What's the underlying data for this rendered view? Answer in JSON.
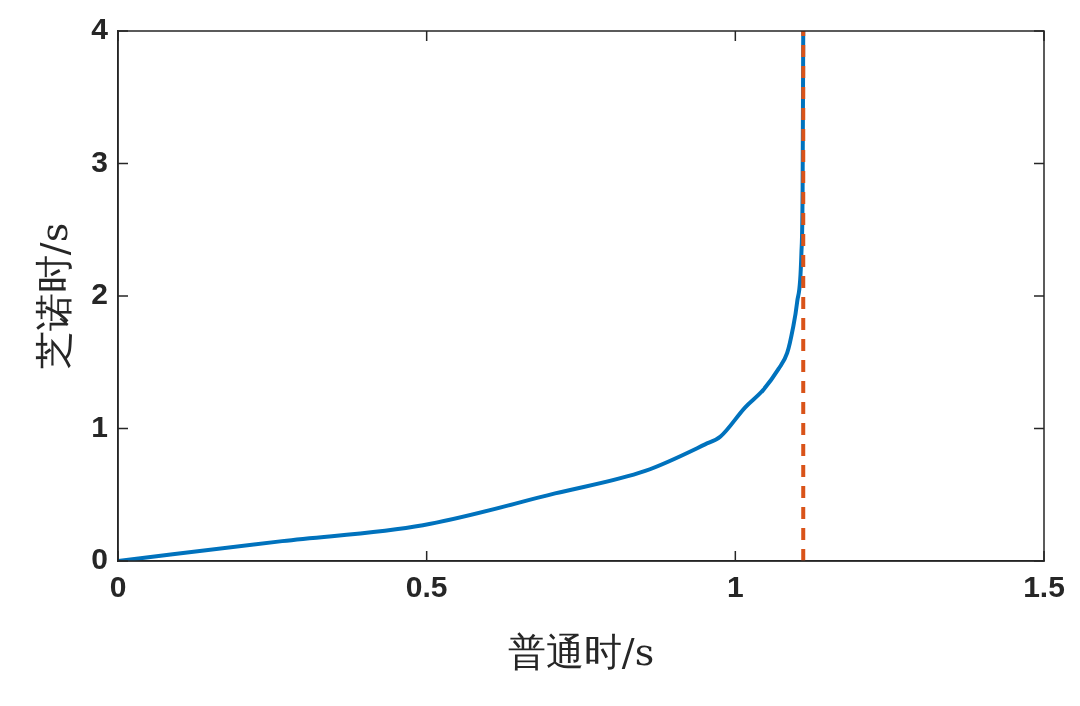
{
  "chart_data": {
    "type": "line",
    "xlabel": "普通时/s",
    "ylabel": "芝诺时/s",
    "xlim": [
      0,
      1.5
    ],
    "ylim": [
      0,
      4
    ],
    "xticks": [
      0,
      0.5,
      1,
      1.5
    ],
    "yticks": [
      0,
      1,
      2,
      3,
      4
    ],
    "grid": false,
    "legend": false,
    "marker": "none",
    "line_style": "solid",
    "series": [
      {
        "color": "#0072bd",
        "x": [
          0,
          0.266,
          0.494,
          0.708,
          0.854,
          0.951,
          0.976,
          1.016,
          1.045,
          1.07,
          1.084,
          1.093,
          1.1,
          1.107,
          1.109,
          1.11
        ],
        "values": [
          0,
          0.15,
          0.27,
          0.51,
          0.68,
          0.88,
          0.94,
          1.16,
          1.29,
          1.45,
          1.57,
          1.75,
          1.95,
          2.32,
          2.82,
          4
        ]
      }
    ],
    "ref_lines": [
      {
        "axis": "x",
        "value": 1.11,
        "color": "#d95319",
        "line_style": "dashed"
      }
    ]
  }
}
